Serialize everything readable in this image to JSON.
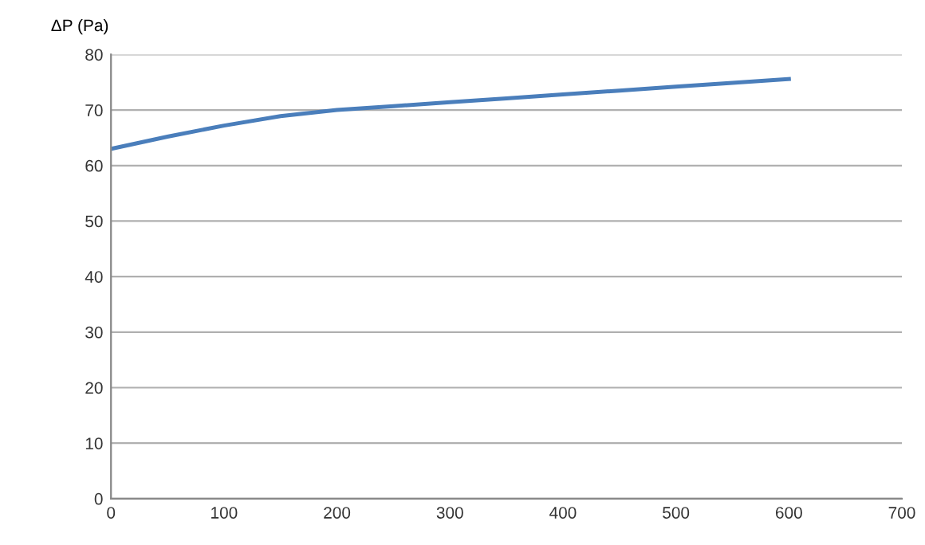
{
  "chart_data": {
    "type": "line",
    "ylabel": "ΔP (Pa)",
    "x": [
      0,
      50,
      100,
      150,
      200,
      250,
      300,
      350,
      400,
      450,
      500,
      550,
      600
    ],
    "series": [
      {
        "color": "#4a7ebb",
        "values": [
          63,
          65.2,
          67.2,
          68.9,
          70,
          70.7,
          71.4,
          72.1,
          72.8,
          73.5,
          74.2,
          74.9,
          75.6
        ]
      }
    ],
    "xlim": [
      0,
      700
    ],
    "xticks": [
      0,
      100,
      200,
      300,
      400,
      500,
      600,
      700
    ],
    "ylim": [
      0,
      80
    ],
    "yticks": [
      0,
      10,
      20,
      30,
      40,
      50,
      60,
      70,
      80
    ],
    "grid": "y",
    "marker": "none",
    "line_style": "solid",
    "legend": false
  }
}
